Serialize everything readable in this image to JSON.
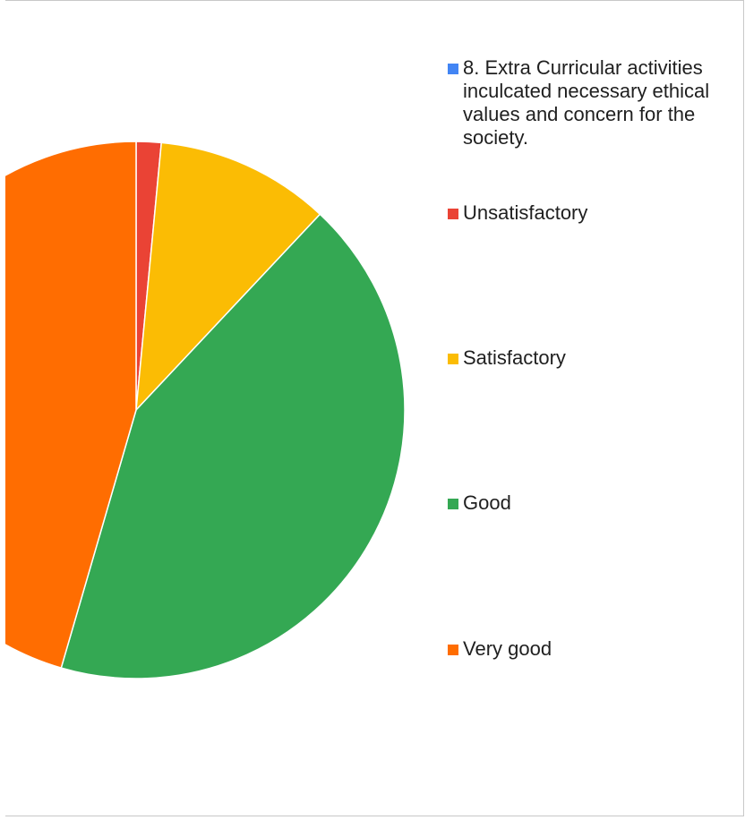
{
  "chart_data": {
    "type": "pie",
    "title": "",
    "series": [
      {
        "name": "8. Extra Curricular activities inculcated necessary ethical values and concern for the society.",
        "color": "#4285F4",
        "categories": [
          "Unsatisfactory",
          "Satisfactory",
          "Good",
          "Very good"
        ],
        "values": [
          1.5,
          10.5,
          42.5,
          45.5
        ]
      }
    ],
    "colors": {
      "Unsatisfactory": "#EA4335",
      "Satisfactory": "#FBBC04",
      "Good": "#34A853",
      "Very good": "#FF6D01"
    },
    "legend": {
      "position": "right",
      "series_label": "8. Extra Curricular activities inculcated necessary ethical values and concern for the society.",
      "items": [
        "Unsatisfactory",
        "Satisfactory",
        "Good",
        "Very good"
      ]
    }
  }
}
